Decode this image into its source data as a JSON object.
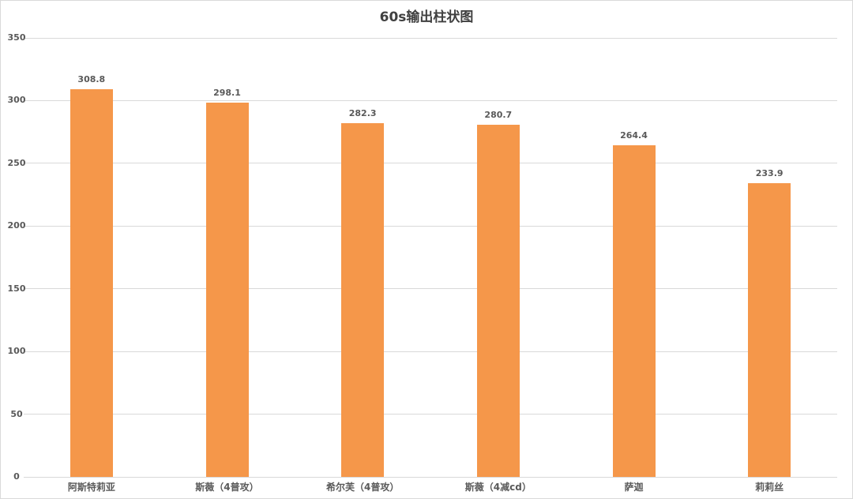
{
  "chart_data": {
    "type": "bar",
    "title": "60s输出柱状图",
    "categories": [
      "阿斯特莉亚",
      "斯薇（4普攻）",
      "希尔芙（4普攻）",
      "斯薇（4减cd）",
      "萨迦",
      "莉莉丝"
    ],
    "values": [
      308.8,
      298.1,
      282.3,
      280.7,
      264.4,
      233.9
    ],
    "value_labels": [
      "308.8",
      "298.1",
      "282.3",
      "280.7",
      "264.4",
      "233.9"
    ],
    "yticks": [
      0,
      50,
      100,
      150,
      200,
      250,
      300,
      350
    ],
    "ylim": [
      0,
      350
    ],
    "xlabel": "",
    "ylabel": "",
    "grid": true,
    "legend": false,
    "colors": {
      "bar": "#F5974A",
      "title_text": "#404040",
      "axis_text": "#595959",
      "gridline": "#D9D9D9",
      "border": "#D9D9D9",
      "background": "#FFFFFF"
    }
  }
}
